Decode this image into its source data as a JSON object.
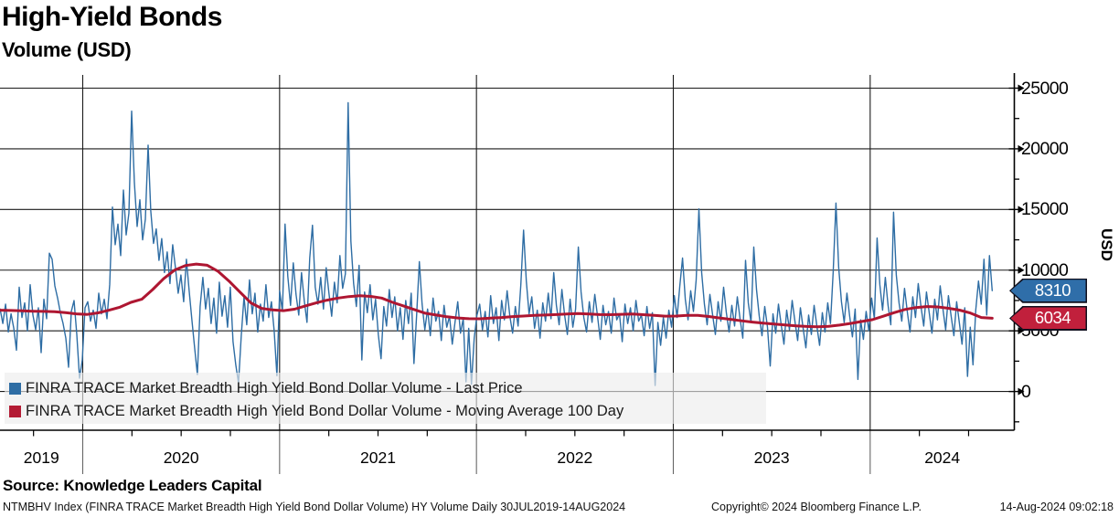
{
  "header": {
    "title": "High-Yield Bonds",
    "subtitle": "Volume (USD)"
  },
  "legend": {
    "items": [
      {
        "label": "FINRA TRACE Market Breadth High Yield Bond Dollar Volume - Last Price",
        "color": "#2e6da4"
      },
      {
        "label": "FINRA TRACE Market Breadth High Yield Bond Dollar Volume - Moving Average 100 Day",
        "color": "#b31b34"
      }
    ]
  },
  "y_axis": {
    "title": "USD",
    "tick_labels": [
      "25000",
      "20000",
      "15000",
      "10000",
      "5000",
      "0"
    ],
    "tick_values": [
      25000,
      20000,
      15000,
      10000,
      5000,
      0
    ],
    "minor_step": 2500
  },
  "x_axis": {
    "tick_labels": [
      "2019",
      "2020",
      "2021",
      "2022",
      "2023",
      "2024"
    ],
    "range_note": "30JUL2019 - 14AUG2024"
  },
  "badges": [
    {
      "value": "8310",
      "color": "#2f6ea9"
    },
    {
      "value": "6034",
      "color": "#c1203c"
    }
  ],
  "source_line": "Source: Knowledge Leaders Capital",
  "footer": {
    "left": "NTMBHV Index (FINRA TRACE Market Breadth High Yield Bond Dollar Volume) HY Volume  Daily 30JUL2019-14AUG2024",
    "center": "Copyright© 2024 Bloomberg Finance L.P.",
    "right": "14-Aug-2024 09:02:18"
  },
  "chart_data": {
    "type": "line",
    "title": "High-Yield Bonds Volume (USD)",
    "xlabel": "",
    "ylabel": "USD",
    "x_start_year": 2019.58,
    "x_end_year": 2024.62,
    "ylim": [
      -3250,
      26000
    ],
    "grid": true,
    "legend_position": "bottom-left",
    "x_tick_labels": [
      "2019",
      "2020",
      "2021",
      "2022",
      "2023",
      "2024"
    ],
    "series": [
      {
        "name": "FINRA TRACE Market Breadth High Yield Bond Dollar Volume - Last Price",
        "color": "#2e6da4",
        "last_value": 8310,
        "values": [
          6800,
          5600,
          7200,
          4900,
          6400,
          5200,
          3400,
          8600,
          6100,
          7300,
          5000,
          8800,
          6300,
          5100,
          6900,
          3200,
          7600,
          6000,
          11400,
          10900,
          8700,
          7700,
          6500,
          5600,
          4400,
          2000,
          6600,
          7500,
          4700,
          1100,
          2600,
          6900,
          7400,
          5800,
          6700,
          5200,
          8100,
          6400,
          7600,
          6000,
          8800,
          15200,
          12100,
          13800,
          11200,
          16600,
          12900,
          14700,
          23100,
          17200,
          13600,
          15800,
          12500,
          14200,
          20300,
          14900,
          12200,
          13400,
          10800,
          12600,
          9800,
          11500,
          8900,
          12100,
          10200,
          8100,
          9600,
          7400,
          10900,
          8300,
          5900,
          3600,
          1400,
          7000,
          9400,
          6800,
          8500,
          5600,
          7700,
          4800,
          9000,
          6200,
          7900,
          5300,
          8600,
          4100,
          2200,
          700,
          4600,
          7800,
          5500,
          9200,
          6400,
          8100,
          4900,
          7200,
          5800,
          8800,
          6100,
          7400,
          5000,
          1300,
          8300,
          6600,
          13800,
          9500,
          7100,
          10600,
          8000,
          6300,
          9800,
          7500,
          5700,
          11000,
          13700,
          8600,
          7200,
          9400,
          6800,
          10200,
          8100,
          6200,
          9000,
          7300,
          11200,
          8500,
          9700,
          23800,
          12400,
          8900,
          7000,
          10400,
          2600,
          8200,
          6500,
          8800,
          5900,
          7600,
          4700,
          2700,
          7000,
          5400,
          8400,
          6100,
          7800,
          5000,
          6900,
          4300,
          7500,
          5600,
          8100,
          2300,
          6400,
          10700,
          7200,
          5100,
          6800,
          4600,
          7700,
          5800,
          6600,
          4200,
          7100,
          5300,
          6200,
          3900,
          5700,
          7400,
          4800,
          6000,
          800,
          5200,
          600,
          4400,
          6300,
          7200,
          5100,
          6600,
          4500,
          7900,
          5600,
          6900,
          4200,
          7500,
          5900,
          8300,
          6200,
          4800,
          7000,
          5400,
          8800,
          13300,
          9100,
          6400,
          7800,
          5200,
          6700,
          4400,
          7300,
          5800,
          8100,
          6000,
          9800,
          7100,
          5500,
          8400,
          6300,
          4700,
          7600,
          5300,
          6800,
          11900,
          8200,
          6100,
          4900,
          7400,
          5700,
          8000,
          6200,
          4300,
          7100,
          5500,
          6600,
          4800,
          7700,
          5900,
          6400,
          4100,
          7200,
          5600,
          6900,
          5000,
          7500,
          5800,
          6300,
          4600,
          7000,
          5200,
          6500,
          500,
          5700,
          3800,
          6100,
          4400,
          6700,
          5300,
          7900,
          6100,
          8700,
          11000,
          7600,
          5900,
          8300,
          6600,
          9200,
          15050,
          9800,
          7200,
          5500,
          8000,
          6300,
          4700,
          7400,
          5800,
          8600,
          6500,
          4900,
          7100,
          5400,
          7800,
          6000,
          4400,
          10800,
          7300,
          5700,
          11900,
          8400,
          6200,
          4600,
          7000,
          5300,
          2100,
          6400,
          4800,
          7200,
          5500,
          3900,
          6700,
          5100,
          7500,
          5800,
          4200,
          6900,
          5200,
          3600,
          6300,
          4700,
          7100,
          5400,
          3800,
          6500,
          4900,
          7300,
          5600,
          9900,
          15530,
          10200,
          7400,
          5700,
          8100,
          6200,
          4500,
          6800,
          990,
          5900,
          4300,
          6600,
          5000,
          7700,
          6000,
          12650,
          8800,
          6700,
          9400,
          7100,
          5500,
          14780,
          9600,
          7300,
          5800,
          8500,
          6600,
          4900,
          7800,
          6100,
          8900,
          7000,
          5400,
          8200,
          6500,
          4800,
          7600,
          5900,
          8700,
          6800,
          5100,
          7900,
          6200,
          4600,
          7400,
          5700,
          3900,
          6900,
          1240,
          5300,
          2200,
          6700,
          9100,
          7200,
          10900,
          6300,
          11200,
          8310
        ]
      },
      {
        "name": "FINRA TRACE Market Breadth High Yield Bond Dollar Volume - Moving Average 100 Day",
        "color": "#ae1631",
        "last_value": 6034,
        "values": [
          6700,
          6680,
          6650,
          6620,
          6600,
          6570,
          6500,
          6400,
          6350,
          6480,
          6700,
          6950,
          7350,
          7600,
          8400,
          9300,
          10000,
          10380,
          10500,
          10400,
          9900,
          9100,
          8200,
          7300,
          6850,
          6720,
          6660,
          6780,
          7050,
          7300,
          7530,
          7700,
          7820,
          7900,
          7840,
          7700,
          7350,
          7050,
          6750,
          6450,
          6300,
          6160,
          6060,
          6000,
          5990,
          6050,
          6100,
          6170,
          6220,
          6270,
          6300,
          6340,
          6390,
          6420,
          6390,
          6340,
          6330,
          6360,
          6380,
          6330,
          6270,
          6210,
          6220,
          6280,
          6280,
          6180,
          6060,
          5950,
          5830,
          5720,
          5630,
          5560,
          5480,
          5410,
          5360,
          5330,
          5370,
          5470,
          5610,
          5770,
          5920,
          6200,
          6500,
          6760,
          6920,
          7000,
          6970,
          6860,
          6710,
          6470,
          6100,
          6034
        ]
      }
    ]
  }
}
